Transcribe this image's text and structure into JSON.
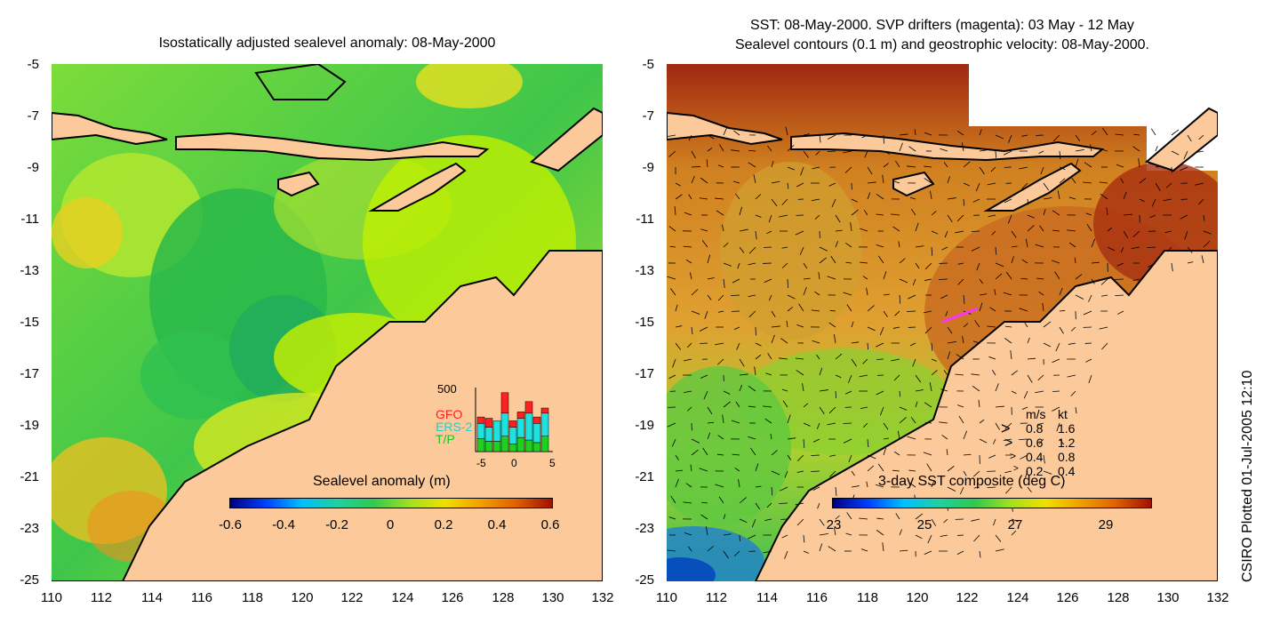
{
  "left_panel": {
    "title": "Isostatically adjusted sealevel anomaly: 08-May-2000",
    "colorbar_title": "Sealevel anomaly (m)",
    "colorbar_ticks": [
      "-0.6",
      "-0.4",
      "-0.2",
      "0",
      "0.2",
      "0.4",
      "0.6"
    ],
    "histogram": {
      "ymax_label": "500",
      "legend": [
        {
          "label": "GFO",
          "color": "#ff2020"
        },
        {
          "label": "ERS-2",
          "color": "#20e0e0"
        },
        {
          "label": "T/P",
          "color": "#20d020"
        }
      ],
      "xticks": [
        "-5",
        "0",
        "5"
      ],
      "bars_tp": [
        100,
        80,
        80,
        120,
        60,
        110,
        90,
        70,
        120
      ],
      "bars_ers": [
        120,
        110,
        160,
        180,
        130,
        150,
        210,
        150,
        180
      ],
      "bars_gfo": [
        50,
        70,
        0,
        160,
        50,
        50,
        90,
        50,
        40
      ]
    }
  },
  "right_panel": {
    "title_line1": "SST: 08-May-2000. SVP drifters (magenta): 03 May - 12 May",
    "title_line2": "Sealevel contours (0.1 m) and geostrophic velocity: 08-May-2000.",
    "colorbar_title": "3-day SST composite (deg C)",
    "colorbar_ticks": [
      "23",
      "25",
      "27",
      "29"
    ],
    "velocity_legend": {
      "header_ms": "m/s",
      "header_kt": "kt",
      "rows": [
        {
          "ms": "0.8",
          "kt": "1.6"
        },
        {
          "ms": "0.6",
          "kt": "1.2"
        },
        {
          "ms": "0.4",
          "kt": "0.8"
        },
        {
          "ms": "0.2",
          "kt": "0.4"
        }
      ]
    }
  },
  "y_ticks": [
    "-5",
    "-7",
    "-9",
    "-11",
    "-13",
    "-15",
    "-17",
    "-19",
    "-21",
    "-23",
    "-25"
  ],
  "x_ticks": [
    "110",
    "112",
    "114",
    "116",
    "118",
    "120",
    "122",
    "124",
    "126",
    "128",
    "130",
    "132"
  ],
  "plot_note": "CSIRO Plotted 01-Jul-2005 12:10",
  "colors": {
    "land": "#fbc99a",
    "ocean_green": "#4fd23a",
    "ocean_yellow": "#c8f000",
    "sst_orange": "#e0901a",
    "sst_red": "#b03010"
  }
}
